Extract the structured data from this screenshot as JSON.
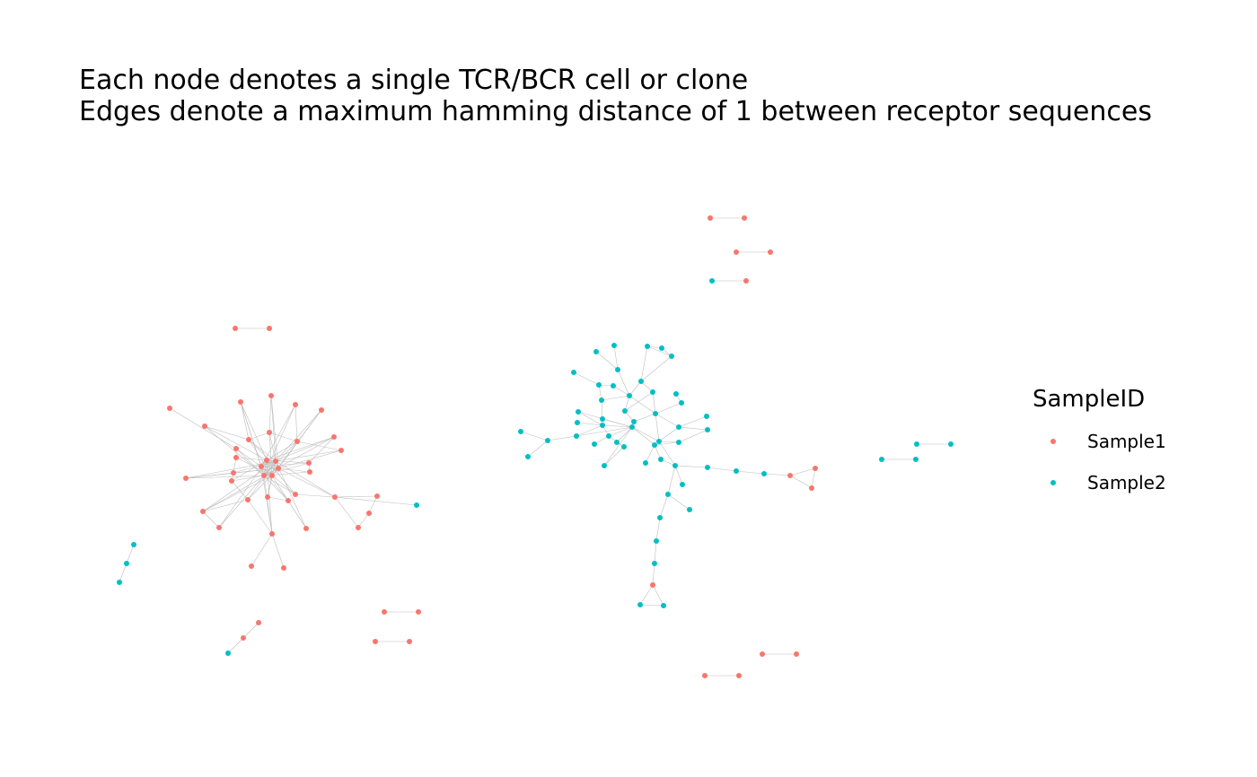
{
  "title": {
    "line1": "Each node denotes a single TCR/BCR cell or clone",
    "line2": "Edges denote a maximum hamming distance of 1 between receptor sequences"
  },
  "legend": {
    "title": "SampleID",
    "items": [
      {
        "label": "Sample1",
        "color": "#F8766D"
      },
      {
        "label": "Sample2",
        "color": "#00BFC4"
      }
    ]
  },
  "colors": {
    "Sample1": "#F8766D",
    "Sample2": "#00BFC4",
    "edge": "#BEBEBE",
    "background": "#FFFFFF"
  }
}
